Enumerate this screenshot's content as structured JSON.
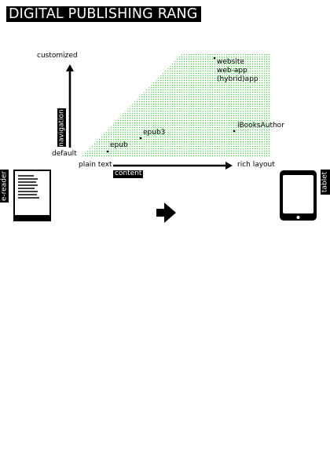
{
  "title": "DIGITAL PUBLISHING RANG",
  "axes": {
    "y_top": "customized",
    "y_bottom": "default",
    "y_tag": "navigation",
    "x_left": "plain text",
    "x_right": "rich layout",
    "x_tag": "content"
  },
  "points": {
    "epub": "epub",
    "epub3": "epub3",
    "ibooks": "iBooksAuthor",
    "web_lines": [
      "website",
      "web-app",
      "(hybrid)app"
    ]
  },
  "devices": {
    "left_tag": "e-reader",
    "right_tag": "tablet"
  },
  "colors": {
    "area_fill": "#33d633",
    "ink": "#000000"
  }
}
